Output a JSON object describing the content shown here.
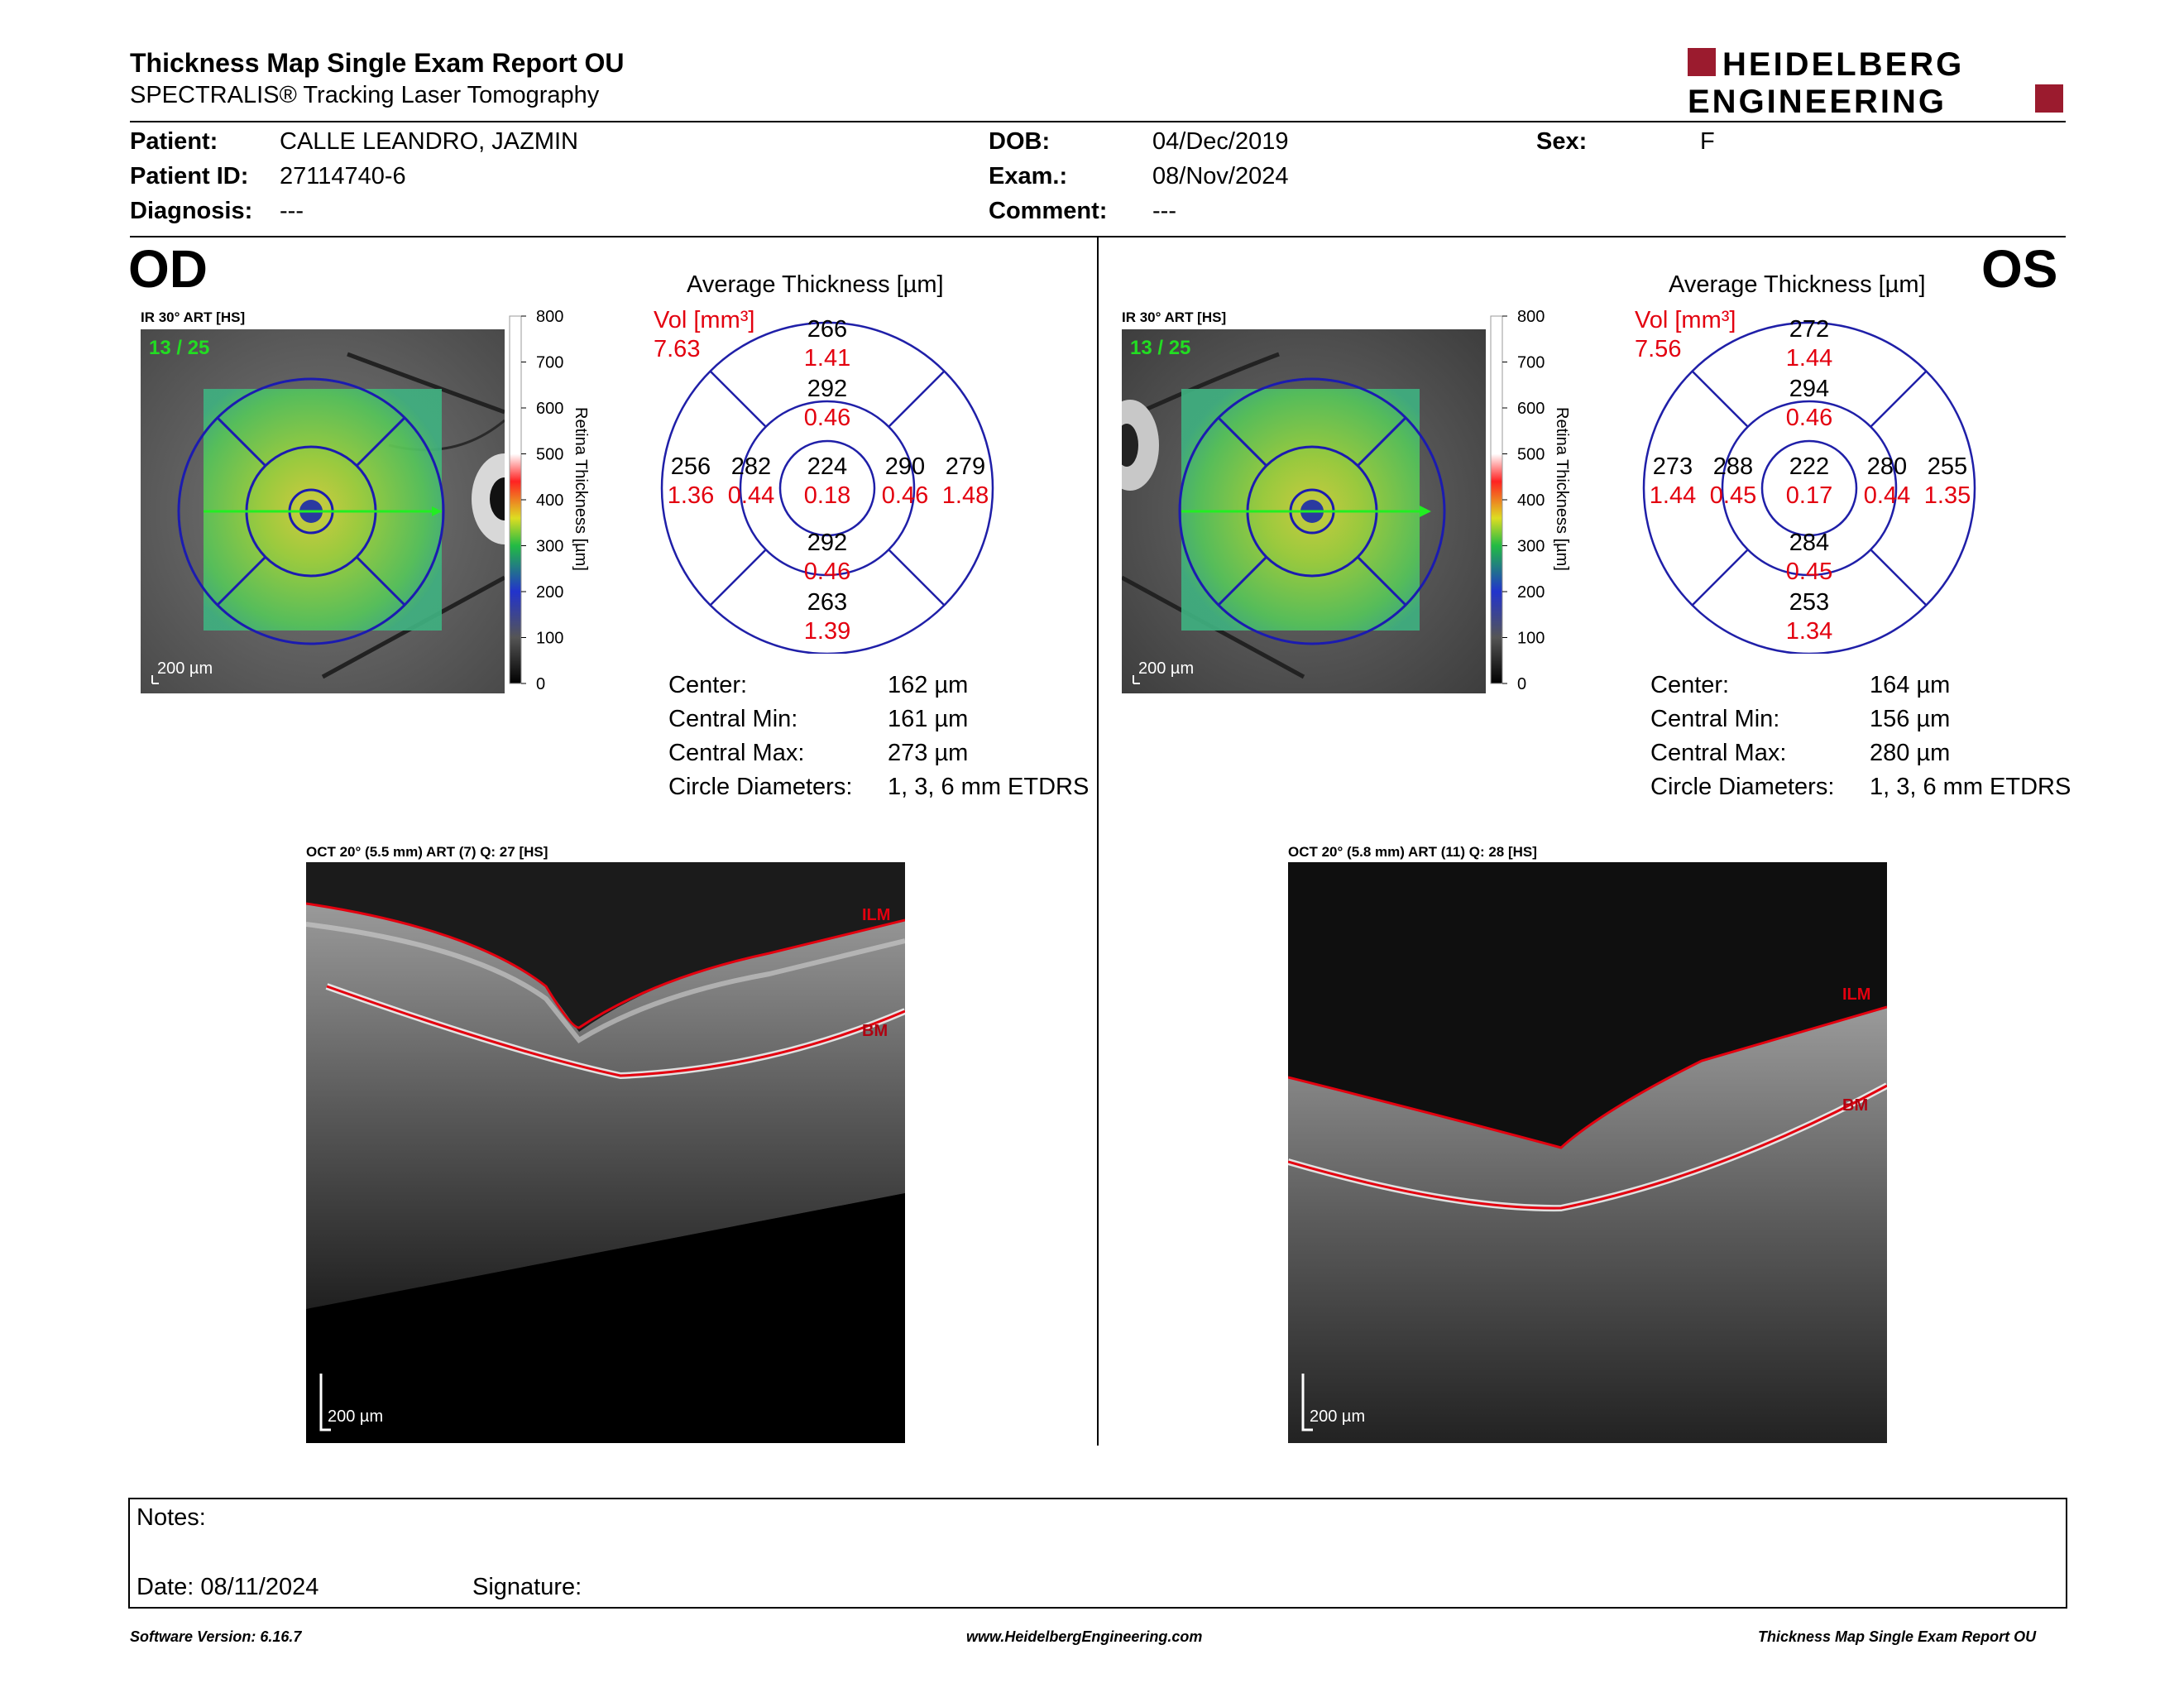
{
  "header": {
    "title": "Thickness Map Single Exam Report OU",
    "subtitle": "SPECTRALIS® Tracking Laser Tomography",
    "logo_line1": "HEIDELBERG",
    "logo_line2": "ENGINEERING"
  },
  "patient": {
    "patient_label": "Patient:",
    "patient_value": "CALLE LEANDRO, JAZMIN",
    "id_label": "Patient ID:",
    "id_value": "27114740-6",
    "diagnosis_label": "Diagnosis:",
    "diagnosis_value": "---",
    "dob_label": "DOB:",
    "dob_value": "04/Dec/2019",
    "exam_label": "Exam.:",
    "exam_value": "08/Nov/2024",
    "comment_label": "Comment:",
    "comment_value": "---",
    "sex_label": "Sex:",
    "sex_value": "F"
  },
  "od": {
    "eye": "OD",
    "ir_label": "IR 30° ART [HS]",
    "frame": "13 / 25",
    "scale": "200 µm",
    "avg_title": "Average Thickness [µm]",
    "vol_label": "Vol [mm³]",
    "vol_total": "7.63",
    "etdrs": {
      "outer_top": [
        "266",
        "1.41"
      ],
      "inner_top": [
        "292",
        "0.46"
      ],
      "outer_left": [
        "256",
        "1.36"
      ],
      "inner_left": [
        "282",
        "0.44"
      ],
      "center": [
        "224",
        "0.18"
      ],
      "inner_right": [
        "290",
        "0.46"
      ],
      "outer_right": [
        "279",
        "1.48"
      ],
      "inner_bottom": [
        "292",
        "0.46"
      ],
      "outer_bottom": [
        "263",
        "1.39"
      ]
    },
    "stats": {
      "center_label": "Center:",
      "center_value": "162 µm",
      "cmin_label": "Central Min:",
      "cmin_value": "161 µm",
      "cmax_label": "Central Max:",
      "cmax_value": "273 µm",
      "diam_label": "Circle Diameters:",
      "diam_value": "1, 3, 6 mm ETDRS"
    },
    "oct_label": "OCT 20° (5.5 mm) ART (7) Q: 27 [HS]",
    "oct_scale": "200 µm",
    "ilm": "ILM",
    "bm": "BM"
  },
  "os": {
    "eye": "OS",
    "ir_label": "IR 30° ART [HS]",
    "frame": "13 / 25",
    "scale": "200 µm",
    "avg_title": "Average Thickness [µm]",
    "vol_label": "Vol [mm³]",
    "vol_total": "7.56",
    "etdrs": {
      "outer_top": [
        "272",
        "1.44"
      ],
      "inner_top": [
        "294",
        "0.46"
      ],
      "outer_left": [
        "273",
        "1.44"
      ],
      "inner_left": [
        "288",
        "0.45"
      ],
      "center": [
        "222",
        "0.17"
      ],
      "inner_right": [
        "280",
        "0.44"
      ],
      "outer_right": [
        "255",
        "1.35"
      ],
      "inner_bottom": [
        "284",
        "0.45"
      ],
      "outer_bottom": [
        "253",
        "1.34"
      ]
    },
    "stats": {
      "center_label": "Center:",
      "center_value": "164 µm",
      "cmin_label": "Central Min:",
      "cmin_value": "156 µm",
      "cmax_label": "Central Max:",
      "cmax_value": "280 µm",
      "diam_label": "Circle Diameters:",
      "diam_value": "1, 3, 6 mm ETDRS"
    },
    "oct_label": "OCT 20° (5.8 mm) ART (11) Q: 28 [HS]",
    "oct_scale": "200 µm",
    "ilm": "ILM",
    "bm": "BM"
  },
  "colorbar": {
    "ticks": [
      "800",
      "700",
      "600",
      "500",
      "400",
      "300",
      "200",
      "100",
      "0"
    ],
    "title": "Retina Thickness [µm]"
  },
  "notes": {
    "notes_label": "Notes:",
    "date_label": "Date: 08/11/2024",
    "signature_label": "Signature:"
  },
  "footer": {
    "version": "Software Version: 6.16.7",
    "website": "www.HeidelbergEngineering.com",
    "report": "Thickness Map Single Exam Report OU"
  },
  "colors": {
    "red": "#e3000f",
    "blue": "#1f1fa8",
    "logo_red": "#9b1b2e",
    "green": "#22dd22"
  }
}
